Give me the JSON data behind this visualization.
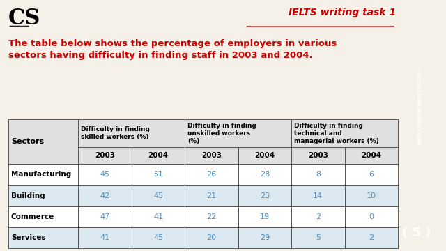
{
  "title_ielts": "IELTS writing task 1",
  "cs_text": "CS",
  "subtitle": "The table below shows the percentage of employers in various\nsectors having difficulty in finding staff in 2003 and 2004.",
  "sidebar_text": "ielts.completesuccess.in",
  "page_num": "5",
  "year_headers": [
    "2003",
    "2004",
    "2003",
    "2004",
    "2003",
    "2004"
  ],
  "sectors": [
    "Manufacturing",
    "Building",
    "Commerce",
    "Services"
  ],
  "data": [
    [
      45,
      51,
      26,
      28,
      8,
      6
    ],
    [
      42,
      45,
      21,
      23,
      14,
      10
    ],
    [
      47,
      41,
      22,
      19,
      2,
      0
    ],
    [
      41,
      45,
      20,
      29,
      5,
      2
    ]
  ],
  "bg_color": "#f5f0e8",
  "table_bg": "#ffffff",
  "header_bg": "#e0e0e0",
  "data_color": "#4a90c4",
  "cs_color": "#000000",
  "ielts_title_color": "#cc0000",
  "subtitle_color": "#cc0000",
  "sidebar_bg": "#cc0000",
  "sidebar_text_color": "#ffffff",
  "page_badge_bg": "#cc0000",
  "page_badge_color": "#ffffff",
  "alt_row_bg": "#dce8f0",
  "header_col1": "Difficulty in finding\nskilled workers (%)",
  "header_col2": "Difficulty in finding\nunskilled workers\n(%)",
  "header_col3": "Difficulty in finding\ntechnical and\nmanagerial workers (%)"
}
